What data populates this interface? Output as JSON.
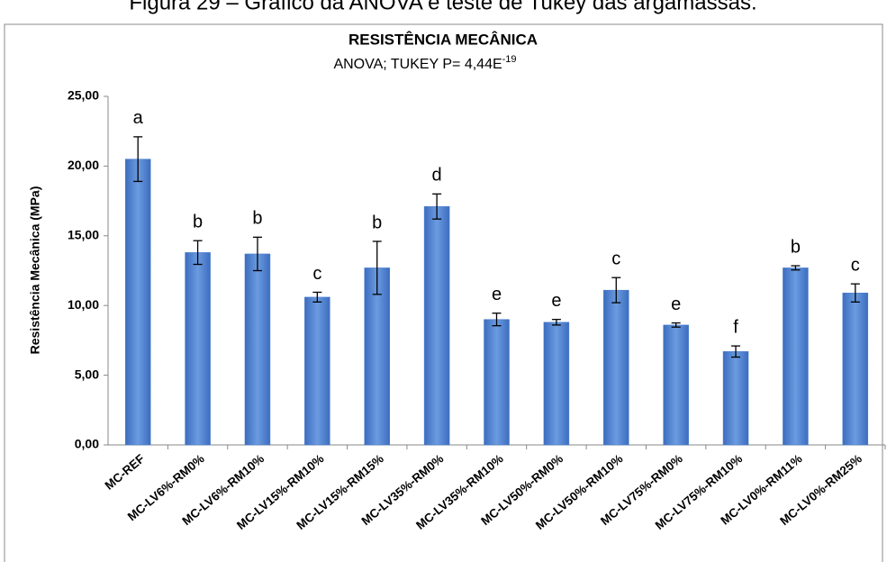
{
  "caption": "Figura 29 – Gráfico da ANOVA e teste de Tukey das argamassas.",
  "chart_data": {
    "type": "bar",
    "title": "RESISTÊNCIA MECÂNICA",
    "subtitle": "ANOVA; TUKEY P= 4,44E",
    "subtitle_exponent": "-19",
    "ylabel": "Resistência Mecânica (MPa)",
    "categories": [
      "MC-REF",
      "MC-LV6%-RM0%",
      "MC-LV6%-RM10%",
      "MC-LV15%-RM10%",
      "MC-LV15%-RM15%",
      "MC-LV35%-RM0%",
      "MC-LV35%-RM10%",
      "MC-LV50%-RM0%",
      "MC-LV50%-RM10%",
      "MC-LV75%-RM0%",
      "MC-LV75%-RM10%",
      "MC-LV0%-RM11%",
      "MC-LV0%-RM25%"
    ],
    "values": [
      20.5,
      13.8,
      13.7,
      10.6,
      12.7,
      17.1,
      9.0,
      8.8,
      11.1,
      8.6,
      6.7,
      12.7,
      10.9
    ],
    "errors": [
      1.6,
      0.85,
      1.2,
      0.35,
      1.9,
      0.9,
      0.45,
      0.2,
      0.9,
      0.15,
      0.4,
      0.15,
      0.65
    ],
    "letters": [
      "a",
      "b",
      "b",
      "c",
      "b",
      "d",
      "e",
      "e",
      "c",
      "e",
      "f",
      "b",
      "c"
    ],
    "color": "#4a7fcf",
    "ylim": [
      0,
      25
    ],
    "yticks": [
      {
        "value": 0,
        "label": "0,00"
      },
      {
        "value": 5,
        "label": "5,00"
      },
      {
        "value": 10,
        "label": "10,00"
      },
      {
        "value": 15,
        "label": "15,00"
      },
      {
        "value": 20,
        "label": "20,00"
      },
      {
        "value": 25,
        "label": "25,00"
      }
    ]
  }
}
